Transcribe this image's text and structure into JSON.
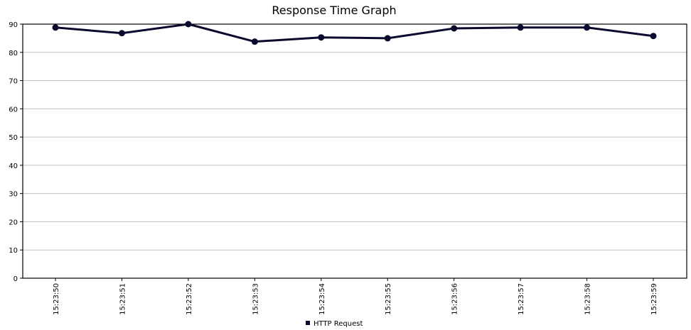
{
  "chart_data": {
    "type": "line",
    "title": "Response Time Graph",
    "xlabel": "",
    "ylabel": "",
    "categories": [
      "15:23:50",
      "15:23:51",
      "15:23:52",
      "15:23:53",
      "15:23:54",
      "15:23:55",
      "15:23:56",
      "15:23:57",
      "15:23:58",
      "15:23:59"
    ],
    "series": [
      {
        "name": "HTTP Request",
        "values": [
          88.8,
          86.8,
          90.0,
          83.8,
          85.3,
          85.0,
          88.5,
          88.8,
          88.8,
          85.8
        ]
      }
    ],
    "ylim": [
      0,
      90
    ],
    "yticks": [
      0,
      10,
      20,
      30,
      40,
      50,
      60,
      70,
      80,
      90
    ],
    "grid": true,
    "legend": "bottom-center",
    "colors": {
      "series": "#0a0a2e",
      "grid": "#c0c0c0",
      "axis": "#000000"
    }
  }
}
